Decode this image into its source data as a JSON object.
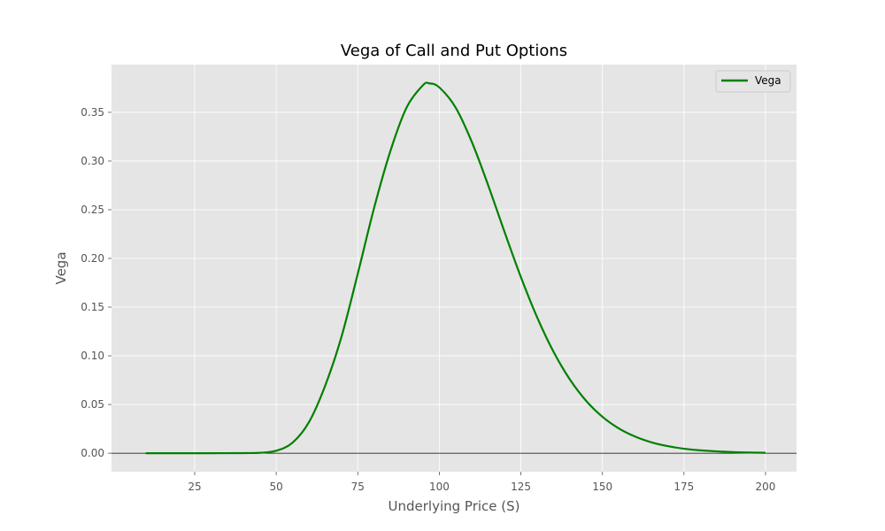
{
  "chart_data": {
    "type": "line",
    "title": "Vega of Call and Put Options",
    "xlabel": "Underlying Price (S)",
    "ylabel": "Vega",
    "xlim": [
      -0.5,
      209.5
    ],
    "ylim": [
      -0.019,
      0.399
    ],
    "x_ticks": [
      25,
      50,
      75,
      100,
      125,
      150,
      175,
      200
    ],
    "y_ticks": [
      0.0,
      0.05,
      0.1,
      0.15,
      0.2,
      0.25,
      0.3,
      0.35
    ],
    "x_tick_labels": [
      "25",
      "50",
      "75",
      "100",
      "125",
      "150",
      "175",
      "200"
    ],
    "y_tick_labels": [
      "0.00",
      "0.05",
      "0.10",
      "0.15",
      "0.20",
      "0.25",
      "0.30",
      "0.35"
    ],
    "grid": true,
    "legend_position": "top-right",
    "background_color": "#e5e5e5",
    "grid_color": "#ffffff",
    "reference_line": {
      "y": 0.0,
      "color": "#000000"
    },
    "series": [
      {
        "name": "Vega",
        "color": "#008000",
        "x": [
          10,
          20,
          30,
          40,
          45,
          50,
          55,
          60,
          65,
          70,
          75,
          80,
          85,
          90,
          95,
          97,
          100,
          105,
          110,
          115,
          120,
          125,
          130,
          135,
          140,
          145,
          150,
          155,
          160,
          165,
          170,
          175,
          180,
          190,
          200
        ],
        "y": [
          0.0,
          0.0,
          0.0,
          0.0001,
          0.0004,
          0.0025,
          0.0108,
          0.0317,
          0.0693,
          0.1195,
          0.1843,
          0.2518,
          0.3103,
          0.3552,
          0.3779,
          0.3797,
          0.3756,
          0.3549,
          0.3193,
          0.2749,
          0.2271,
          0.1809,
          0.1394,
          0.1042,
          0.0758,
          0.0538,
          0.0374,
          0.0255,
          0.0171,
          0.0112,
          0.0073,
          0.0046,
          0.0029,
          0.0011,
          0.0004
        ]
      }
    ]
  }
}
